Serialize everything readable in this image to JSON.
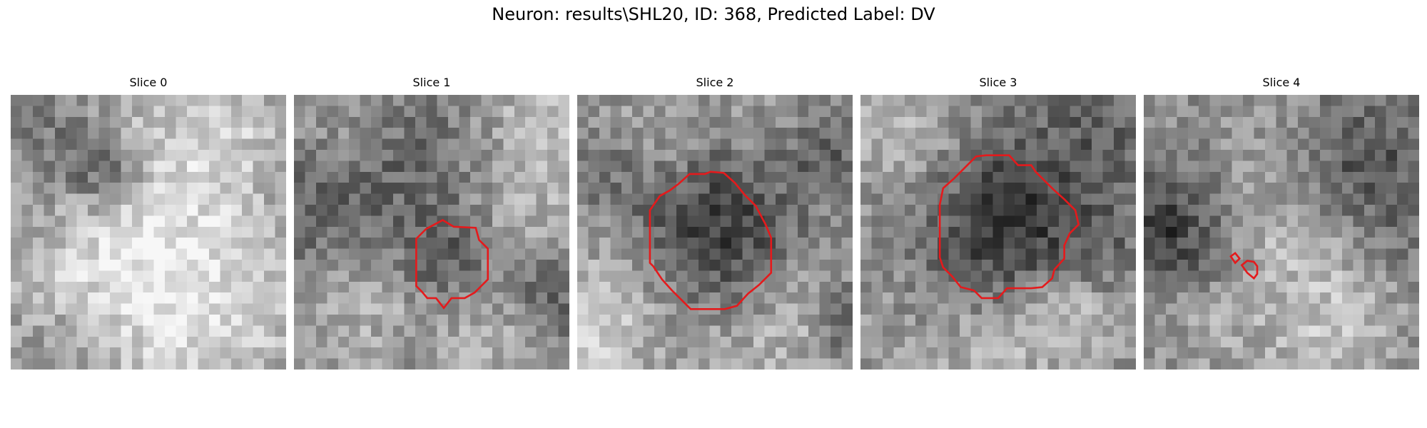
{
  "figure": {
    "suptitle": "Neuron: results\\SHL20, ID: 368, Predicted Label: DV"
  },
  "colors": {
    "contour": "#e41a1c",
    "background": "#ffffff"
  },
  "slices": [
    {
      "title": "Slice 0"
    },
    {
      "title": "Slice 1"
    },
    {
      "title": "Slice 2"
    },
    {
      "title": "Slice 3"
    },
    {
      "title": "Slice 4"
    }
  ]
}
